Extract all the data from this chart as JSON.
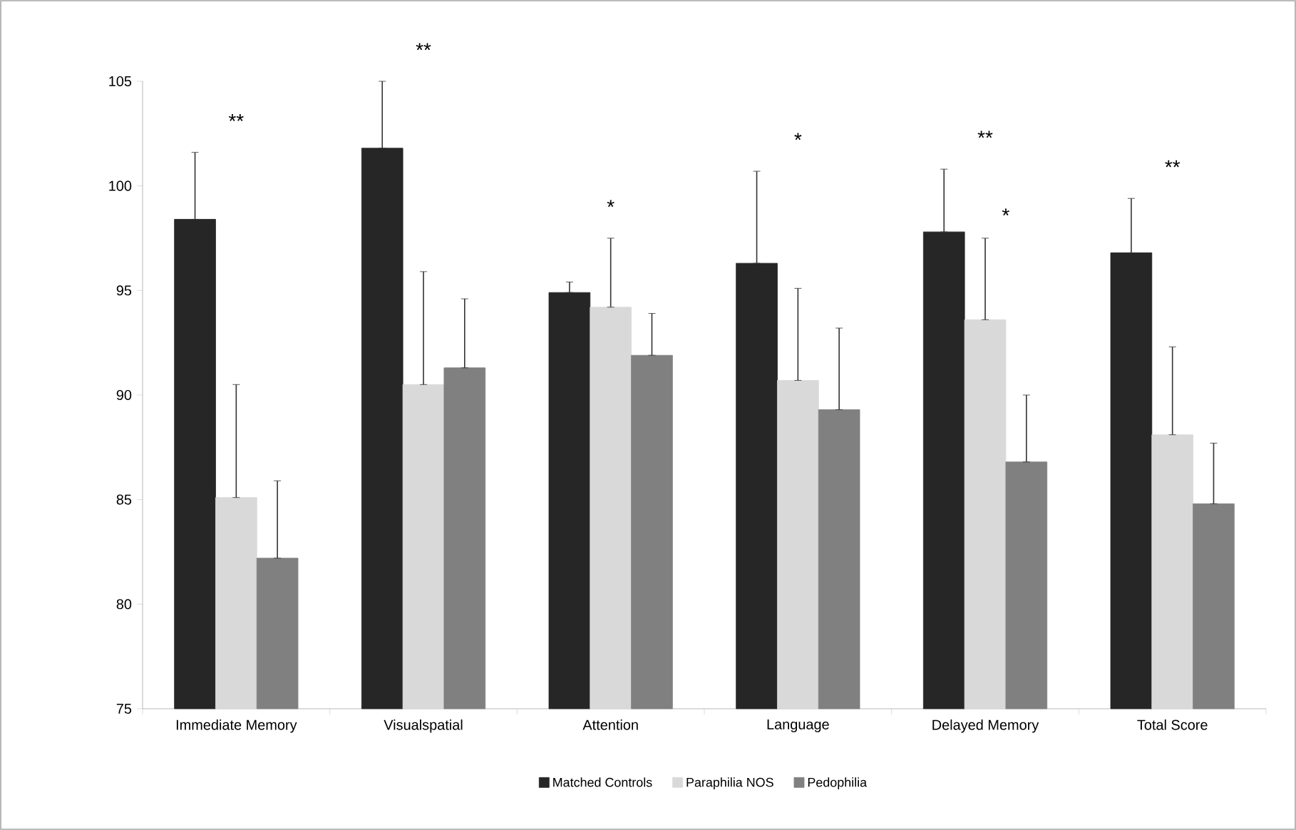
{
  "chart_data": {
    "type": "bar",
    "categories": [
      "Immediate Memory",
      "Visualspatial",
      "Attention",
      "Language",
      "Delayed Memory",
      "Total Score"
    ],
    "series": [
      {
        "name": "Matched Controls",
        "color": "#262626",
        "values": [
          98.4,
          101.8,
          94.9,
          96.3,
          97.8,
          96.8
        ],
        "errors": [
          [
            98.4,
            101.6
          ],
          [
            101.8,
            105.0
          ],
          [
            94.9,
            95.4
          ],
          [
            96.3,
            100.7
          ],
          [
            97.8,
            100.8
          ],
          [
            96.8,
            99.4
          ]
        ]
      },
      {
        "name": "Paraphilia NOS",
        "color": "#d9d9d9",
        "values": [
          85.1,
          90.5,
          94.2,
          90.7,
          93.6,
          88.1
        ],
        "errors": [
          [
            85.1,
            90.5
          ],
          [
            90.5,
            95.9
          ],
          [
            94.2,
            97.5
          ],
          [
            90.7,
            95.1
          ],
          [
            93.6,
            97.5
          ],
          [
            88.1,
            92.3
          ]
        ]
      },
      {
        "name": "Pedophilia",
        "color": "#808080",
        "values": [
          82.2,
          91.3,
          91.9,
          89.3,
          86.8,
          84.8
        ],
        "errors": [
          [
            82.2,
            85.9
          ],
          [
            91.3,
            94.6
          ],
          [
            91.9,
            93.9
          ],
          [
            89.3,
            93.2
          ],
          [
            86.8,
            90.0
          ],
          [
            84.8,
            87.7
          ]
        ]
      }
    ],
    "ylim": [
      75,
      105
    ],
    "yticks": [
      75,
      80,
      85,
      90,
      95,
      100,
      105
    ],
    "legend": "bottom",
    "annotations": [
      "**",
      "**",
      "*",
      "*",
      "**",
      "*",
      "**"
    ]
  }
}
